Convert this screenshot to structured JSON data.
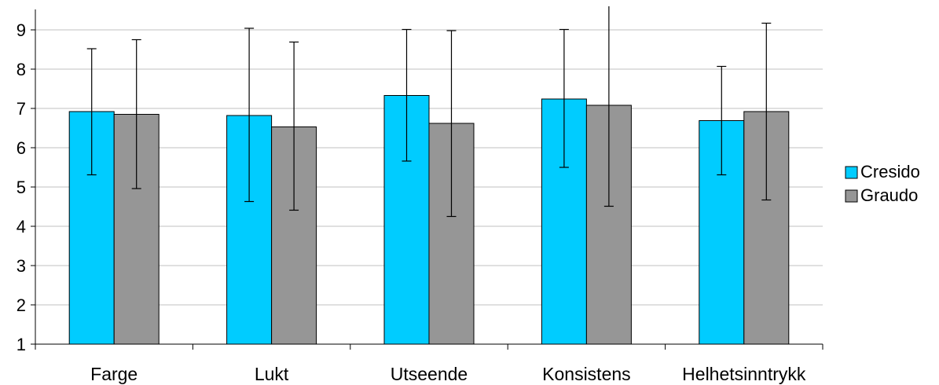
{
  "chart_data": {
    "type": "bar",
    "categories": [
      "Farge",
      "Lukt",
      "Utseende",
      "Konsistens",
      "Helhetsinntrykk"
    ],
    "series": [
      {
        "name": "Cresido",
        "color": "#00CCFF",
        "values": [
          6.92,
          6.82,
          7.33,
          7.24,
          6.69
        ],
        "error_low": [
          5.31,
          4.63,
          5.66,
          5.5,
          5.31
        ],
        "error_high": [
          8.52,
          9.04,
          9.01,
          9.01,
          8.07
        ]
      },
      {
        "name": "Graudo",
        "color": "#969696",
        "values": [
          6.85,
          6.53,
          6.62,
          7.08,
          6.92
        ],
        "error_low": [
          4.96,
          4.41,
          4.25,
          4.51,
          4.67
        ],
        "error_high": [
          8.75,
          8.69,
          8.98,
          9.6,
          9.17
        ]
      }
    ],
    "ylim": [
      1,
      9.5
    ],
    "yticks": [
      "1",
      "2",
      "3",
      "4",
      "5",
      "6",
      "7",
      "8",
      "9"
    ],
    "grid": true,
    "legend": "right"
  }
}
